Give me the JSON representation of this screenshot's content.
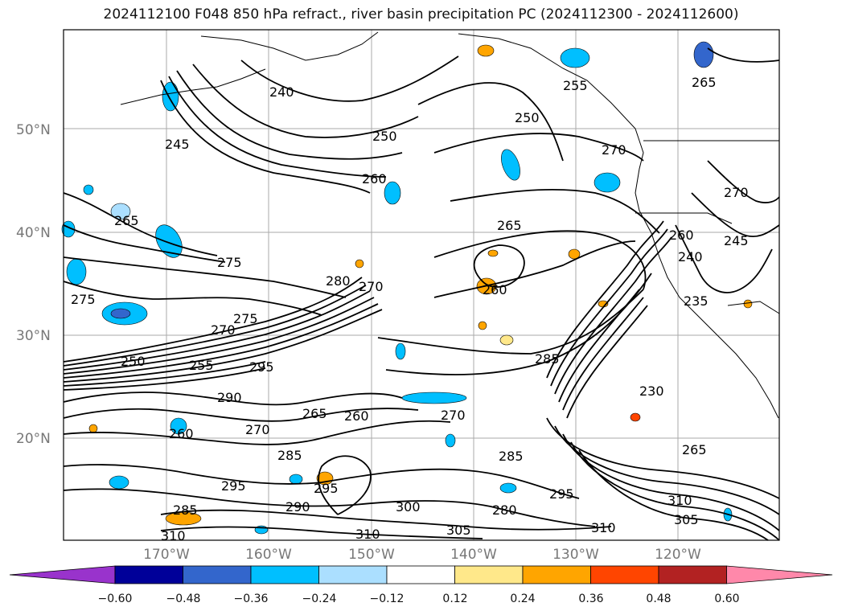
{
  "title": "2024112100 F048 850 hPa refract., river basin precipitation PC (2024112300 - 2024112600)",
  "lat_labels": [
    "50°N",
    "40°N",
    "30°N",
    "20°N"
  ],
  "lon_labels": [
    "170°W",
    "160°W",
    "150°W",
    "140°W",
    "130°W",
    "120°W"
  ],
  "contour_labels": [
    {
      "text": "240"
    },
    {
      "text": "245"
    },
    {
      "text": "250"
    },
    {
      "text": "250"
    },
    {
      "text": "255"
    },
    {
      "text": "260"
    },
    {
      "text": "265"
    },
    {
      "text": "265"
    },
    {
      "text": "260"
    },
    {
      "text": "270"
    },
    {
      "text": "260"
    },
    {
      "text": "270"
    },
    {
      "text": "245"
    },
    {
      "text": "240"
    },
    {
      "text": "235"
    },
    {
      "text": "275"
    },
    {
      "text": "275"
    },
    {
      "text": "275"
    },
    {
      "text": "280"
    },
    {
      "text": "270"
    },
    {
      "text": "270"
    },
    {
      "text": "285"
    },
    {
      "text": "295"
    },
    {
      "text": "290"
    },
    {
      "text": "265"
    },
    {
      "text": "260"
    },
    {
      "text": "270"
    },
    {
      "text": "270"
    },
    {
      "text": "285"
    },
    {
      "text": "285"
    },
    {
      "text": "295"
    },
    {
      "text": "295"
    },
    {
      "text": "290"
    },
    {
      "text": "300"
    },
    {
      "text": "310"
    },
    {
      "text": "305"
    },
    {
      "text": "310"
    },
    {
      "text": "295"
    },
    {
      "text": "280"
    },
    {
      "text": "230"
    },
    {
      "text": "265"
    },
    {
      "text": "310"
    },
    {
      "text": "305"
    },
    {
      "text": "285"
    },
    {
      "text": "310"
    },
    {
      "text": "260"
    },
    {
      "text": "265"
    },
    {
      "text": "250"
    },
    {
      "text": "255"
    }
  ],
  "colorbar": {
    "labels": [
      "−0.60",
      "−0.48",
      "−0.36",
      "−0.24",
      "−0.12",
      "0.12",
      "0.24",
      "0.36",
      "0.48",
      "0.60"
    ],
    "colors": [
      "#9933cc",
      "#000099",
      "#3366cc",
      "#00bfff",
      "#abdfff",
      "#ffffff",
      "#ffe88a",
      "#ffa500",
      "#ff4500",
      "#b22222",
      "#ff88aa",
      "#ff88aa"
    ]
  }
}
